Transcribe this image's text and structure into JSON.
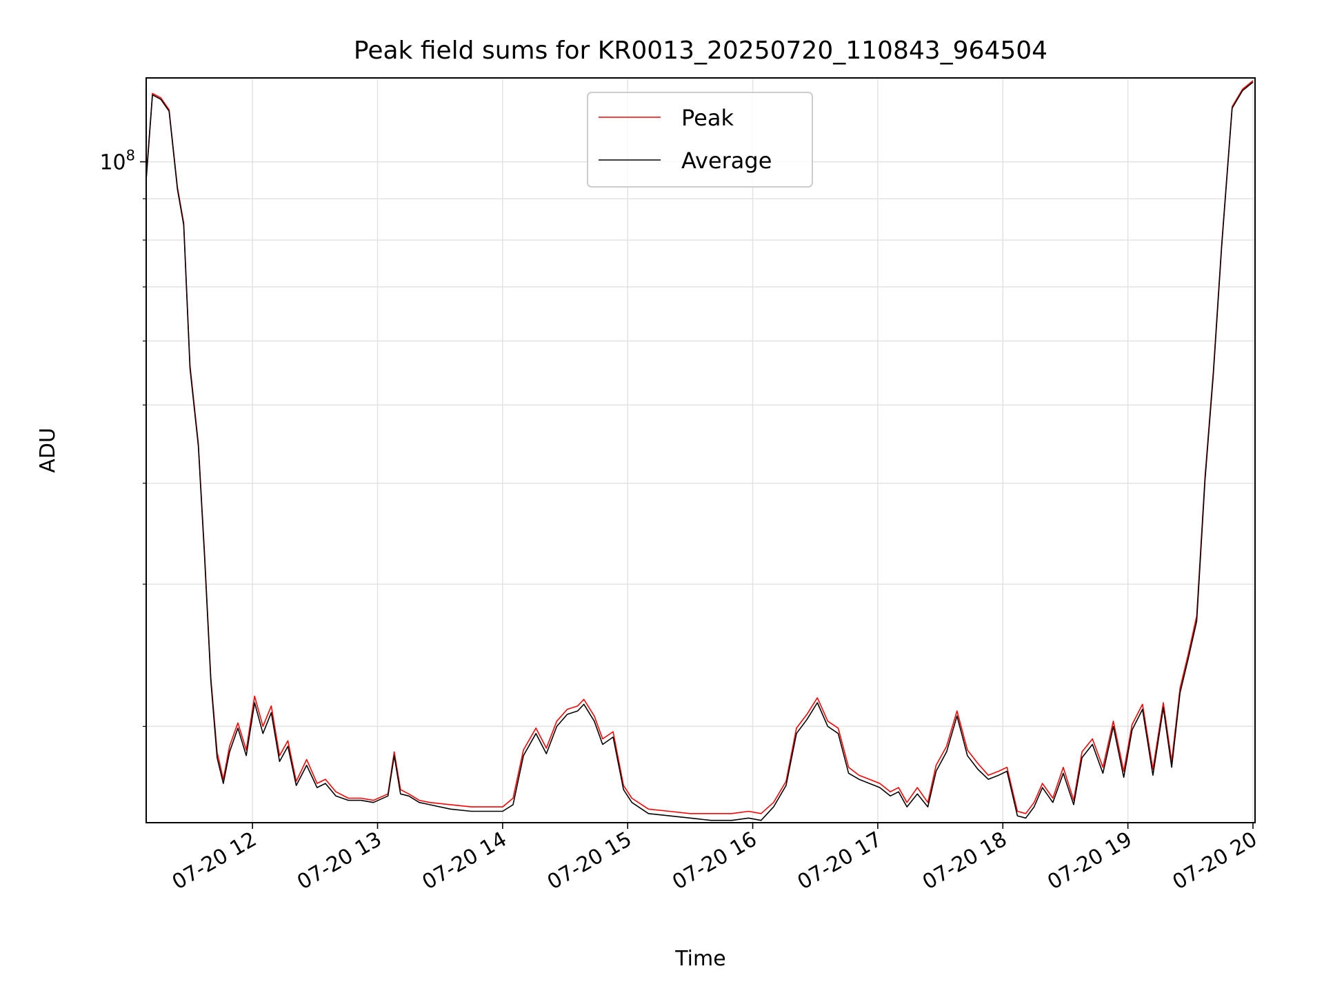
{
  "chart_data": {
    "type": "line",
    "title": "Peak field sums for KR0013_20250720_110843_964504",
    "xlabel": "Time",
    "ylabel": "ADU",
    "yscale": "log",
    "grid": true,
    "legend_position": "upper center",
    "xlim": [
      "2025-07-20 11:09",
      "2025-07-20 20:01"
    ],
    "ylim": [
      15200000,
      127000000
    ],
    "x_ticks": [
      "2025-07-20 12:00",
      "2025-07-20 13:00",
      "2025-07-20 14:00",
      "2025-07-20 15:00",
      "2025-07-20 16:00",
      "2025-07-20 17:00",
      "2025-07-20 18:00",
      "2025-07-20 19:00",
      "2025-07-20 20:00"
    ],
    "x_tick_labels": [
      "07-20 12",
      "07-20 13",
      "07-20 14",
      "07-20 15",
      "07-20 16",
      "07-20 17",
      "07-20 18",
      "07-20 19",
      "07-20 20"
    ],
    "y_major_ticks": [
      100000000
    ],
    "y_major_tick_labels": [
      {
        "base": "10",
        "exp": "8"
      }
    ],
    "y_minor_ticks": [
      20000000,
      30000000,
      40000000,
      50000000,
      60000000,
      70000000,
      80000000,
      90000000
    ],
    "series": [
      {
        "name": "Peak",
        "color": "#ff0000",
        "x": [
          "2025-07-20 11:09",
          "2025-07-20 11:12",
          "2025-07-20 11:16",
          "2025-07-20 11:20",
          "2025-07-20 11:24",
          "2025-07-20 11:27",
          "2025-07-20 11:30",
          "2025-07-20 11:34",
          "2025-07-20 11:37",
          "2025-07-20 11:40",
          "2025-07-20 11:43",
          "2025-07-20 11:46",
          "2025-07-20 11:49",
          "2025-07-20 11:53",
          "2025-07-20 11:57",
          "2025-07-20 12:01",
          "2025-07-20 12:05",
          "2025-07-20 12:09",
          "2025-07-20 12:13",
          "2025-07-20 12:17",
          "2025-07-20 12:21",
          "2025-07-20 12:26",
          "2025-07-20 12:31",
          "2025-07-20 12:35",
          "2025-07-20 12:40",
          "2025-07-20 12:46",
          "2025-07-20 12:52",
          "2025-07-20 12:58",
          "2025-07-20 13:05",
          "2025-07-20 13:08",
          "2025-07-20 13:11",
          "2025-07-20 13:15",
          "2025-07-20 13:20",
          "2025-07-20 13:25",
          "2025-07-20 13:35",
          "2025-07-20 13:45",
          "2025-07-20 13:55",
          "2025-07-20 14:00",
          "2025-07-20 14:05",
          "2025-07-20 14:10",
          "2025-07-20 14:16",
          "2025-07-20 14:21",
          "2025-07-20 14:26",
          "2025-07-20 14:31",
          "2025-07-20 14:36",
          "2025-07-20 14:39",
          "2025-07-20 14:44",
          "2025-07-20 14:48",
          "2025-07-20 14:53",
          "2025-07-20 14:58",
          "2025-07-20 15:02",
          "2025-07-20 15:10",
          "2025-07-20 15:20",
          "2025-07-20 15:30",
          "2025-07-20 15:40",
          "2025-07-20 15:50",
          "2025-07-20 15:58",
          "2025-07-20 16:04",
          "2025-07-20 16:10",
          "2025-07-20 16:16",
          "2025-07-20 16:21",
          "2025-07-20 16:26",
          "2025-07-20 16:31",
          "2025-07-20 16:36",
          "2025-07-20 16:41",
          "2025-07-20 16:46",
          "2025-07-20 16:51",
          "2025-07-20 16:56",
          "2025-07-20 17:01",
          "2025-07-20 17:06",
          "2025-07-20 17:10",
          "2025-07-20 17:14",
          "2025-07-20 17:19",
          "2025-07-20 17:24",
          "2025-07-20 17:28",
          "2025-07-20 17:33",
          "2025-07-20 17:38",
          "2025-07-20 17:43",
          "2025-07-20 17:48",
          "2025-07-20 17:53",
          "2025-07-20 17:58",
          "2025-07-20 18:02",
          "2025-07-20 18:07",
          "2025-07-20 18:11",
          "2025-07-20 18:15",
          "2025-07-20 18:19",
          "2025-07-20 18:24",
          "2025-07-20 18:29",
          "2025-07-20 18:34",
          "2025-07-20 18:38",
          "2025-07-20 18:43",
          "2025-07-20 18:48",
          "2025-07-20 18:53",
          "2025-07-20 18:58",
          "2025-07-20 19:02",
          "2025-07-20 19:07",
          "2025-07-20 19:12",
          "2025-07-20 19:17",
          "2025-07-20 19:21",
          "2025-07-20 19:25",
          "2025-07-20 19:29",
          "2025-07-20 19:33",
          "2025-07-20 19:37",
          "2025-07-20 19:41",
          "2025-07-20 19:45",
          "2025-07-20 19:50",
          "2025-07-20 19:55",
          "2025-07-20 20:00"
        ],
        "y": [
          95500000,
          121500000,
          120000000,
          116000000,
          93000000,
          84000000,
          56000000,
          44800000,
          32800000,
          23000000,
          18600000,
          17200000,
          18900000,
          20200000,
          18700000,
          21800000,
          20000000,
          21200000,
          18400000,
          19200000,
          17100000,
          18200000,
          17000000,
          17200000,
          16600000,
          16300000,
          16300000,
          16200000,
          16500000,
          18600000,
          16700000,
          16500000,
          16200000,
          16100000,
          16000000,
          15900000,
          15900000,
          15900000,
          16300000,
          18700000,
          19900000,
          18800000,
          20300000,
          21000000,
          21200000,
          21600000,
          20600000,
          19300000,
          19700000,
          16900000,
          16300000,
          15800000,
          15700000,
          15600000,
          15600000,
          15600000,
          15700000,
          15600000,
          16100000,
          17100000,
          19900000,
          20700000,
          21700000,
          20300000,
          19900000,
          17800000,
          17400000,
          17200000,
          17000000,
          16600000,
          16800000,
          16100000,
          16800000,
          16100000,
          17900000,
          18900000,
          20900000,
          18700000,
          18000000,
          17400000,
          17600000,
          17800000,
          15700000,
          15600000,
          16100000,
          17000000,
          16300000,
          17800000,
          16200000,
          18600000,
          19300000,
          17800000,
          20300000,
          17600000,
          20100000,
          21300000,
          17700000,
          21400000,
          18100000,
          22300000,
          24600000,
          27400000,
          40800000,
          55000000,
          79000000,
          117000000,
          123000000,
          126000000
        ]
      },
      {
        "name": "Average",
        "color": "#000000",
        "x": [
          "2025-07-20 11:09",
          "2025-07-20 11:12",
          "2025-07-20 11:16",
          "2025-07-20 11:20",
          "2025-07-20 11:24",
          "2025-07-20 11:27",
          "2025-07-20 11:30",
          "2025-07-20 11:34",
          "2025-07-20 11:37",
          "2025-07-20 11:40",
          "2025-07-20 11:43",
          "2025-07-20 11:46",
          "2025-07-20 11:49",
          "2025-07-20 11:53",
          "2025-07-20 11:57",
          "2025-07-20 12:01",
          "2025-07-20 12:05",
          "2025-07-20 12:09",
          "2025-07-20 12:13",
          "2025-07-20 12:17",
          "2025-07-20 12:21",
          "2025-07-20 12:26",
          "2025-07-20 12:31",
          "2025-07-20 12:35",
          "2025-07-20 12:40",
          "2025-07-20 12:46",
          "2025-07-20 12:52",
          "2025-07-20 12:58",
          "2025-07-20 13:05",
          "2025-07-20 13:08",
          "2025-07-20 13:11",
          "2025-07-20 13:15",
          "2025-07-20 13:20",
          "2025-07-20 13:25",
          "2025-07-20 13:35",
          "2025-07-20 13:45",
          "2025-07-20 13:55",
          "2025-07-20 14:00",
          "2025-07-20 14:05",
          "2025-07-20 14:10",
          "2025-07-20 14:16",
          "2025-07-20 14:21",
          "2025-07-20 14:26",
          "2025-07-20 14:31",
          "2025-07-20 14:36",
          "2025-07-20 14:39",
          "2025-07-20 14:44",
          "2025-07-20 14:48",
          "2025-07-20 14:53",
          "2025-07-20 14:58",
          "2025-07-20 15:02",
          "2025-07-20 15:10",
          "2025-07-20 15:20",
          "2025-07-20 15:30",
          "2025-07-20 15:40",
          "2025-07-20 15:50",
          "2025-07-20 15:58",
          "2025-07-20 16:04",
          "2025-07-20 16:10",
          "2025-07-20 16:16",
          "2025-07-20 16:21",
          "2025-07-20 16:26",
          "2025-07-20 16:31",
          "2025-07-20 16:36",
          "2025-07-20 16:41",
          "2025-07-20 16:46",
          "2025-07-20 16:51",
          "2025-07-20 16:56",
          "2025-07-20 17:01",
          "2025-07-20 17:06",
          "2025-07-20 17:10",
          "2025-07-20 17:14",
          "2025-07-20 17:19",
          "2025-07-20 17:24",
          "2025-07-20 17:28",
          "2025-07-20 17:33",
          "2025-07-20 17:38",
          "2025-07-20 17:43",
          "2025-07-20 17:48",
          "2025-07-20 17:53",
          "2025-07-20 17:58",
          "2025-07-20 18:02",
          "2025-07-20 18:07",
          "2025-07-20 18:11",
          "2025-07-20 18:15",
          "2025-07-20 18:19",
          "2025-07-20 18:24",
          "2025-07-20 18:29",
          "2025-07-20 18:34",
          "2025-07-20 18:38",
          "2025-07-20 18:43",
          "2025-07-20 18:48",
          "2025-07-20 18:53",
          "2025-07-20 18:58",
          "2025-07-20 19:02",
          "2025-07-20 19:07",
          "2025-07-20 19:12",
          "2025-07-20 19:17",
          "2025-07-20 19:21",
          "2025-07-20 19:25",
          "2025-07-20 19:29",
          "2025-07-20 19:33",
          "2025-07-20 19:37",
          "2025-07-20 19:41",
          "2025-07-20 19:45",
          "2025-07-20 19:50",
          "2025-07-20 19:55",
          "2025-07-20 20:00"
        ],
        "y": [
          95000000,
          121000000,
          119500000,
          115500000,
          92500000,
          83500000,
          55500000,
          44500000,
          32500000,
          22800000,
          18300000,
          17000000,
          18600000,
          19900000,
          18400000,
          21400000,
          19600000,
          20800000,
          18100000,
          18900000,
          16900000,
          17900000,
          16800000,
          17000000,
          16400000,
          16200000,
          16200000,
          16100000,
          16400000,
          18400000,
          16500000,
          16400000,
          16100000,
          16000000,
          15800000,
          15700000,
          15700000,
          15700000,
          16000000,
          18400000,
          19600000,
          18500000,
          20000000,
          20700000,
          20900000,
          21300000,
          20300000,
          19000000,
          19400000,
          16700000,
          16100000,
          15600000,
          15500000,
          15400000,
          15300000,
          15300000,
          15400000,
          15300000,
          15900000,
          16900000,
          19600000,
          20400000,
          21400000,
          20000000,
          19600000,
          17500000,
          17200000,
          17000000,
          16800000,
          16400000,
          16600000,
          15900000,
          16500000,
          15900000,
          17600000,
          18600000,
          20600000,
          18400000,
          17700000,
          17200000,
          17400000,
          17600000,
          15500000,
          15400000,
          15900000,
          16800000,
          16100000,
          17500000,
          16000000,
          18300000,
          19000000,
          17500000,
          20000000,
          17300000,
          19800000,
          21000000,
          17400000,
          21100000,
          17800000,
          22000000,
          24300000,
          27000000,
          40400000,
          54500000,
          78500000,
          116500000,
          122500000,
          125500000
        ]
      }
    ]
  }
}
